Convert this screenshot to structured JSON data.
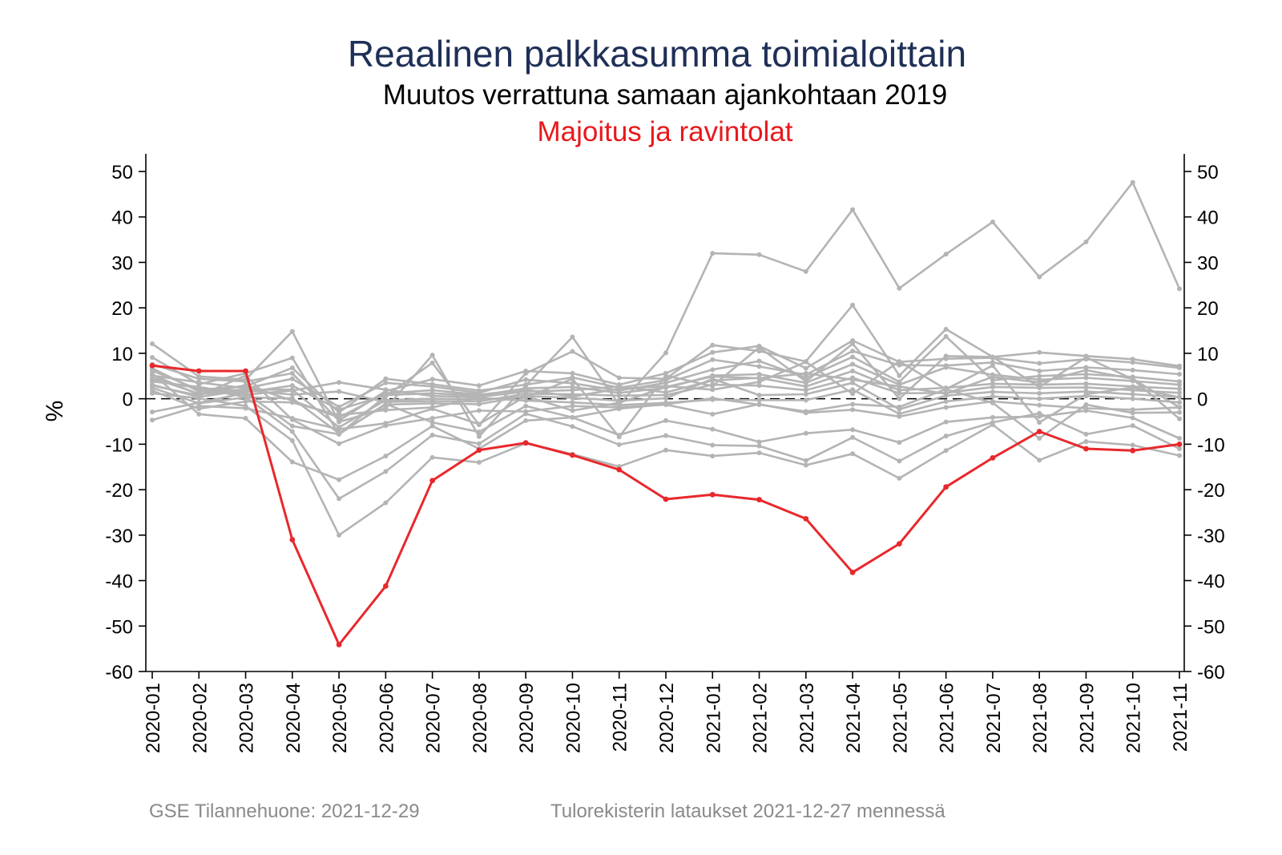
{
  "chart_data": {
    "type": "line",
    "title": "Reaalinen palkkasumma toimialoittain",
    "subtitle": "Muutos verrattuna samaan ajankohtaan 2019",
    "highlight_label": "Majoitus ja ravintolat",
    "ylabel": "%",
    "xlabel": "",
    "ylim": [
      -60,
      50
    ],
    "yticks": [
      "50",
      "40",
      "30",
      "20",
      "10",
      "0",
      "-10",
      "-20",
      "-30",
      "-40",
      "-50",
      "-60"
    ],
    "ytick_values": [
      50,
      40,
      30,
      20,
      10,
      0,
      -10,
      -20,
      -30,
      -40,
      -50,
      -60
    ],
    "categories": [
      "2020-01",
      "2020-02",
      "2020-03",
      "2020-04",
      "2020-05",
      "2020-06",
      "2020-07",
      "2020-08",
      "2020-09",
      "2020-10",
      "2020-11",
      "2020-12",
      "2021-01",
      "2021-02",
      "2021-03",
      "2021-04",
      "2021-05",
      "2021-06",
      "2021-07",
      "2021-08",
      "2021-09",
      "2021-10",
      "2021-11"
    ],
    "reference_line": 0,
    "grid": false,
    "highlight_series": {
      "color": "#e8282c",
      "values": [
        7.3,
        6.1,
        6.1,
        -31.0,
        -54.1,
        -41.2,
        -18.0,
        -11.3,
        -9.7,
        -12.4,
        -15.6,
        -22.1,
        -21.1,
        -22.2,
        -26.4,
        -38.2,
        -31.9,
        -19.4,
        -13.0,
        -7.2,
        -11.0,
        -11.4,
        -10.0
      ]
    },
    "background_series_color": "#b4b4b4",
    "background_series": [
      [
        12.1,
        4.9,
        4.2,
        14.8,
        -5.1,
        -2.1,
        9.6,
        -8.3,
        2.9,
        13.6,
        -1.3,
        10.1,
        32.0,
        31.7,
        28.0,
        41.6,
        24.3,
        31.8,
        38.9,
        26.8,
        34.5,
        47.6,
        24.2
      ],
      [
        9.1,
        3.2,
        5.6,
        9.0,
        -7.8,
        0.6,
        7.9,
        -5.7,
        5.6,
        10.4,
        4.6,
        4.4,
        11.8,
        10.5,
        8.2,
        20.6,
        5.1,
        15.3,
        9.2,
        10.2,
        9.4,
        8.7,
        7.2
      ],
      [
        7.6,
        4.4,
        3.8,
        5.6,
        -4.8,
        1.7,
        4.3,
        2.9,
        6.1,
        5.6,
        3.1,
        5.6,
        10.2,
        11.6,
        6.7,
        12.8,
        8.1,
        8.8,
        9.0,
        7.8,
        8.7,
        8.0,
        6.8
      ],
      [
        6.2,
        2.0,
        2.7,
        6.8,
        -3.0,
        4.4,
        3.2,
        1.8,
        3.1,
        4.7,
        2.4,
        4.1,
        8.6,
        7.1,
        5.3,
        10.5,
        7.4,
        7.3,
        8.0,
        6.1,
        6.9,
        6.3,
        5.4
      ],
      [
        5.1,
        3.6,
        2.3,
        4.4,
        -1.8,
        3.5,
        2.7,
        1.3,
        4.2,
        3.4,
        1.8,
        3.5,
        6.4,
        8.3,
        4.6,
        9.2,
        3.7,
        13.7,
        4.1,
        5.0,
        5.4,
        4.8,
        3.8
      ],
      [
        4.6,
        1.1,
        1.4,
        2.9,
        -2.4,
        0.8,
        1.2,
        0.7,
        2.3,
        2.6,
        1.3,
        2.4,
        5.1,
        5.4,
        3.5,
        7.6,
        3.1,
        6.9,
        5.3,
        4.2,
        4.6,
        3.9,
        3.1
      ],
      [
        3.8,
        2.6,
        0.9,
        1.8,
        3.6,
        2.0,
        0.6,
        0.4,
        1.6,
        1.9,
        2.7,
        1.4,
        4.0,
        4.6,
        2.7,
        6.1,
        1.9,
        2.4,
        3.3,
        3.1,
        3.3,
        2.7,
        2.2
      ],
      [
        3.1,
        0.4,
        1.9,
        0.9,
        1.6,
        -0.7,
        -0.5,
        -0.6,
        1.1,
        1.0,
        0.7,
        0.8,
        3.1,
        2.9,
        1.9,
        4.6,
        1.2,
        1.3,
        2.6,
        2.4,
        2.5,
        1.9,
        1.3
      ],
      [
        2.4,
        -1.0,
        0.3,
        0.1,
        -7.6,
        -1.3,
        -1.0,
        -1.2,
        0.6,
        0.2,
        -0.4,
        0.1,
        4.4,
        0.8,
        1.0,
        3.5,
        -2.3,
        0.7,
        1.5,
        1.2,
        1.6,
        1.0,
        0.4
      ],
      [
        1.8,
        -2.2,
        -0.6,
        -0.8,
        -3.6,
        -2.5,
        -1.9,
        0.2,
        -0.4,
        -0.8,
        -1.4,
        -0.9,
        -0.2,
        -0.3,
        -0.3,
        2.0,
        -3.3,
        -0.6,
        0.5,
        0.0,
        0.6,
        0.0,
        -0.8
      ],
      [
        2.9,
        0.7,
        5.1,
        -4.6,
        -9.9,
        -5.9,
        -4.3,
        -2.6,
        -2.8,
        -1.6,
        -1.9,
        -1.3,
        -3.4,
        -1.2,
        -3.1,
        -2.4,
        -3.9,
        -1.9,
        -0.6,
        -1.4,
        -2.1,
        -2.4,
        -1.9
      ],
      [
        -2.9,
        -0.9,
        1.3,
        -6.0,
        -7.8,
        -1.1,
        -5.2,
        -7.3,
        -1.6,
        -4.1,
        -2.2,
        -1.2,
        0.1,
        -1.3,
        -2.8,
        -1.2,
        -1.8,
        2.1,
        -0.9,
        -8.7,
        -1.3,
        -3.1,
        -3.0
      ],
      [
        -4.7,
        -1.6,
        -2.1,
        -4.3,
        -6.7,
        -5.4,
        -2.2,
        -5.6,
        0.6,
        -2.6,
        -0.9,
        2.6,
        4.9,
        4.5,
        5.6,
        4.2,
        2.7,
        1.1,
        4.8,
        3.6,
        6.3,
        4.4,
        -1.9
      ],
      [
        5.6,
        -3.4,
        -4.3,
        -13.9,
        -17.8,
        -12.6,
        -6.0,
        -11.0,
        -4.8,
        -4.1,
        -8.0,
        -4.8,
        -6.7,
        -9.5,
        -7.6,
        -6.8,
        -9.6,
        -5.1,
        -4.1,
        -3.9,
        -2.6,
        -4.2,
        -8.7
      ],
      [
        4.1,
        2.3,
        0.4,
        -7.2,
        -22.0,
        -16.0,
        -8.0,
        -9.9,
        -3.3,
        -6.1,
        -10.1,
        -8.1,
        -10.2,
        -10.4,
        -13.6,
        -8.5,
        -13.7,
        -8.2,
        -5.2,
        -3.2,
        -7.8,
        -5.9,
        -11.0
      ],
      [
        1.2,
        0.1,
        -1.6,
        -9.2,
        -30.0,
        -22.9,
        -12.9,
        -14.0,
        -9.8,
        -12.2,
        -14.9,
        -11.3,
        -12.6,
        -11.9,
        -14.6,
        -12.1,
        -17.5,
        -11.4,
        -5.7,
        -13.5,
        -9.4,
        -10.2,
        -12.5
      ],
      [
        6.7,
        1.6,
        2.0,
        2.0,
        -6.3,
        -0.3,
        0.0,
        -0.1,
        0.3,
        4.4,
        -8.4,
        5.1,
        2.8,
        11.3,
        3.8,
        12.1,
        0.0,
        9.4,
        9.2,
        2.6,
        9.1,
        4.3,
        -4.4
      ],
      [
        5.3,
        0.9,
        3.0,
        -0.4,
        -4.1,
        1.2,
        1.9,
        0.9,
        2.0,
        0.5,
        2.2,
        2.8,
        2.0,
        3.7,
        8.1,
        1.1,
        8.2,
        2.1,
        7.3,
        -5.2,
        1.0,
        2.5,
        0.3
      ]
    ]
  },
  "footer": {
    "left": "GSE Tilannehuone: 2021-12-29",
    "right": "Tulorekisterin lataukset 2021-12-27 mennessä"
  }
}
